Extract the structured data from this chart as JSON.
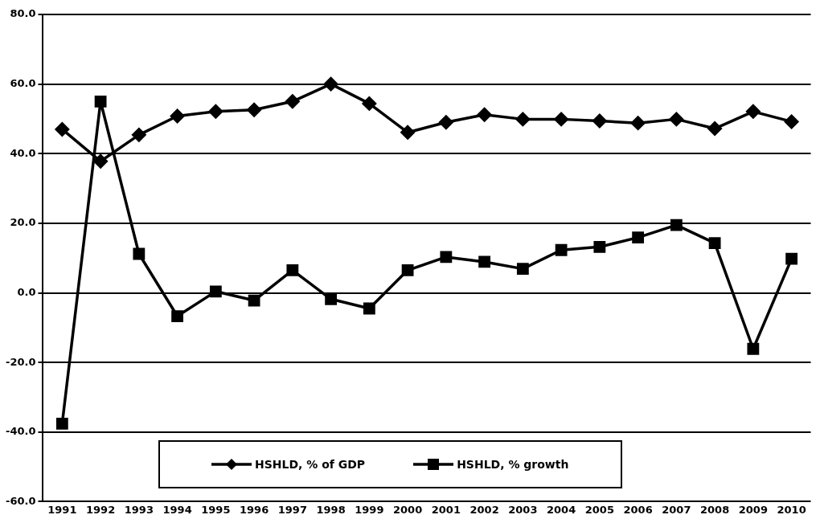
{
  "chart_data": {
    "type": "line",
    "categories": [
      "1991",
      "1992",
      "1993",
      "1994",
      "1995",
      "1996",
      "1997",
      "1998",
      "1999",
      "2000",
      "2001",
      "2002",
      "2003",
      "2004",
      "2005",
      "2006",
      "2007",
      "2008",
      "2009",
      "2010"
    ],
    "series": [
      {
        "name": "HSHLD, % of GDP",
        "color": "#000000",
        "marker": "diamond",
        "values": [
          47.0,
          37.8,
          45.4,
          50.8,
          52.1,
          52.6,
          55.0,
          60.0,
          54.4,
          46.1,
          49.0,
          51.2,
          49.9,
          49.9,
          49.4,
          48.8,
          49.9,
          47.2,
          52.1,
          49.2
        ]
      },
      {
        "name": "HSHLD, % growth",
        "color": "#000000",
        "marker": "square",
        "values": [
          -37.6,
          55.0,
          11.2,
          -6.7,
          0.4,
          -2.2,
          6.5,
          -1.8,
          -4.5,
          6.5,
          10.3,
          8.9,
          6.9,
          12.3,
          13.2,
          15.9,
          19.5,
          14.3,
          -16.1,
          9.8
        ]
      }
    ],
    "ylim": [
      -60,
      80
    ],
    "yticks": [
      {
        "value": -60,
        "label": "-60.0"
      },
      {
        "value": -40,
        "label": "-40.0"
      },
      {
        "value": -20,
        "label": "-20.0"
      },
      {
        "value": 0,
        "label": "0.0"
      },
      {
        "value": 20,
        "label": "20.0"
      },
      {
        "value": 40,
        "label": "40.0"
      },
      {
        "value": 60,
        "label": "60.0"
      },
      {
        "value": 80,
        "label": "80.0"
      }
    ],
    "grid": "y",
    "legend": "bottom",
    "line_style": "solid"
  }
}
